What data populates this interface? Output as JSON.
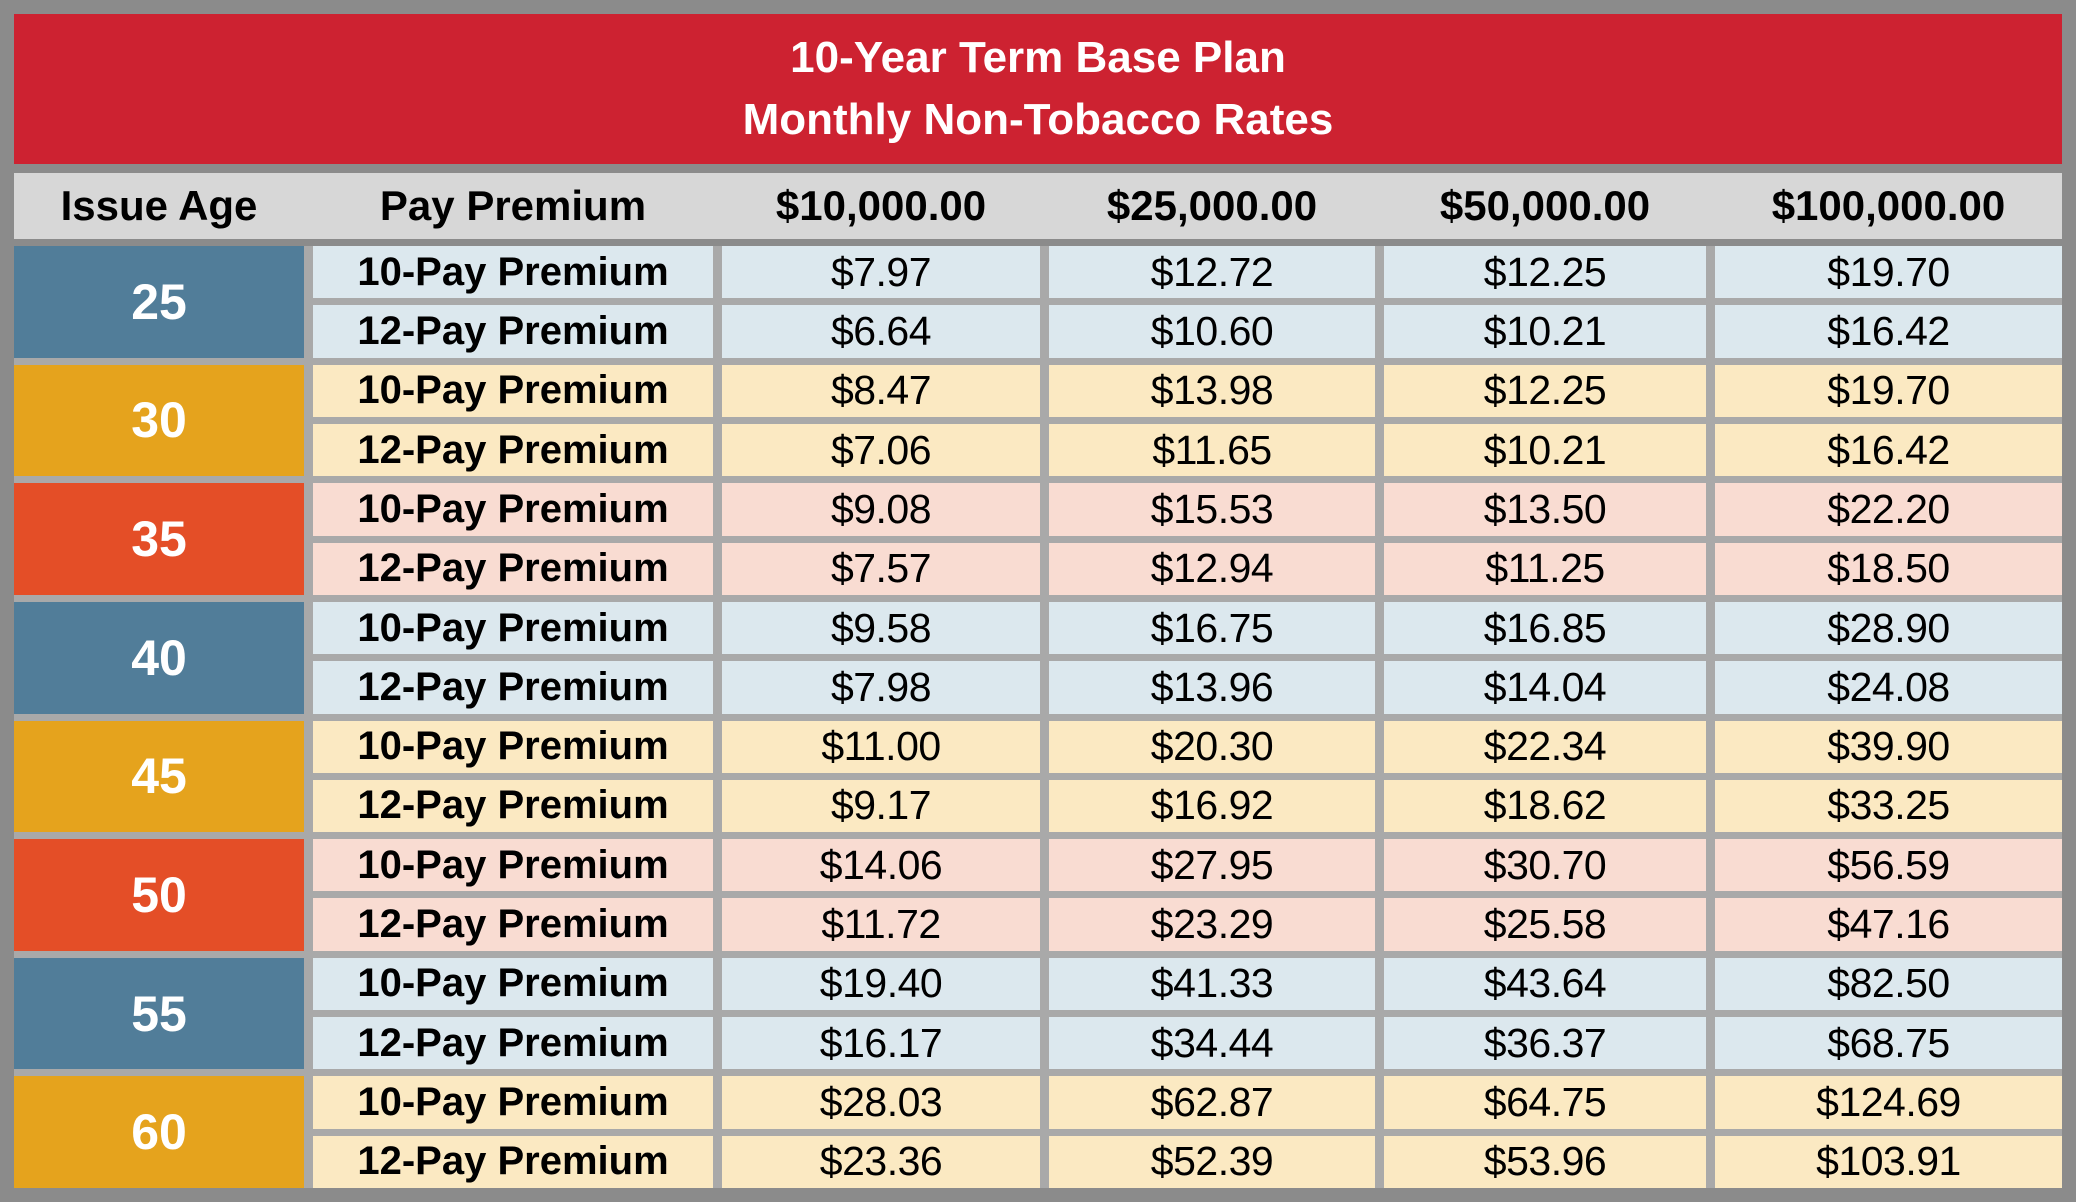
{
  "chart_data": {
    "type": "table",
    "title": "10-Year Term Base Plan",
    "subtitle": "Monthly Non-Tobacco Rates",
    "columns": [
      "Issue Age",
      "Pay Premium",
      "$10,000.00",
      "$25,000.00",
      "$50,000.00",
      "$100,000.00"
    ],
    "labels": {
      "pay10": "10-Pay Premium",
      "pay12": "12-Pay Premium"
    },
    "groups": [
      {
        "age": "25",
        "theme": "blue",
        "pay10": [
          "$7.97",
          "$12.72",
          "$12.25",
          "$19.70"
        ],
        "pay12": [
          "$6.64",
          "$10.60",
          "$10.21",
          "$16.42"
        ]
      },
      {
        "age": "30",
        "theme": "gold",
        "pay10": [
          "$8.47",
          "$13.98",
          "$12.25",
          "$19.70"
        ],
        "pay12": [
          "$7.06",
          "$11.65",
          "$10.21",
          "$16.42"
        ]
      },
      {
        "age": "35",
        "theme": "red",
        "pay10": [
          "$9.08",
          "$15.53",
          "$13.50",
          "$22.20"
        ],
        "pay12": [
          "$7.57",
          "$12.94",
          "$11.25",
          "$18.50"
        ]
      },
      {
        "age": "40",
        "theme": "blue",
        "pay10": [
          "$9.58",
          "$16.75",
          "$16.85",
          "$28.90"
        ],
        "pay12": [
          "$7.98",
          "$13.96",
          "$14.04",
          "$24.08"
        ]
      },
      {
        "age": "45",
        "theme": "gold",
        "pay10": [
          "$11.00",
          "$20.30",
          "$22.34",
          "$39.90"
        ],
        "pay12": [
          "$9.17",
          "$16.92",
          "$18.62",
          "$33.25"
        ]
      },
      {
        "age": "50",
        "theme": "red",
        "pay10": [
          "$14.06",
          "$27.95",
          "$30.70",
          "$56.59"
        ],
        "pay12": [
          "$11.72",
          "$23.29",
          "$25.58",
          "$47.16"
        ]
      },
      {
        "age": "55",
        "theme": "blue",
        "pay10": [
          "$19.40",
          "$41.33",
          "$43.64",
          "$82.50"
        ],
        "pay12": [
          "$16.17",
          "$34.44",
          "$36.37",
          "$68.75"
        ]
      },
      {
        "age": "60",
        "theme": "gold",
        "pay10": [
          "$28.03",
          "$62.87",
          "$64.75",
          "$124.69"
        ],
        "pay12": [
          "$23.36",
          "$52.39",
          "$53.96",
          "$103.91"
        ]
      }
    ]
  },
  "colors": {
    "red_banner": "#cd2231",
    "border": "#8b8b8b",
    "grid_line": "#a9a9a9",
    "header_bg": "#d7d7d7",
    "title_text": "#ffffff",
    "age_blue": "#517d99",
    "age_gold": "#e5a31d",
    "age_red": "#e44e27",
    "row_blue": "#dce8ee",
    "row_gold": "#fbe9c2",
    "row_red": "#f9dcd2"
  }
}
